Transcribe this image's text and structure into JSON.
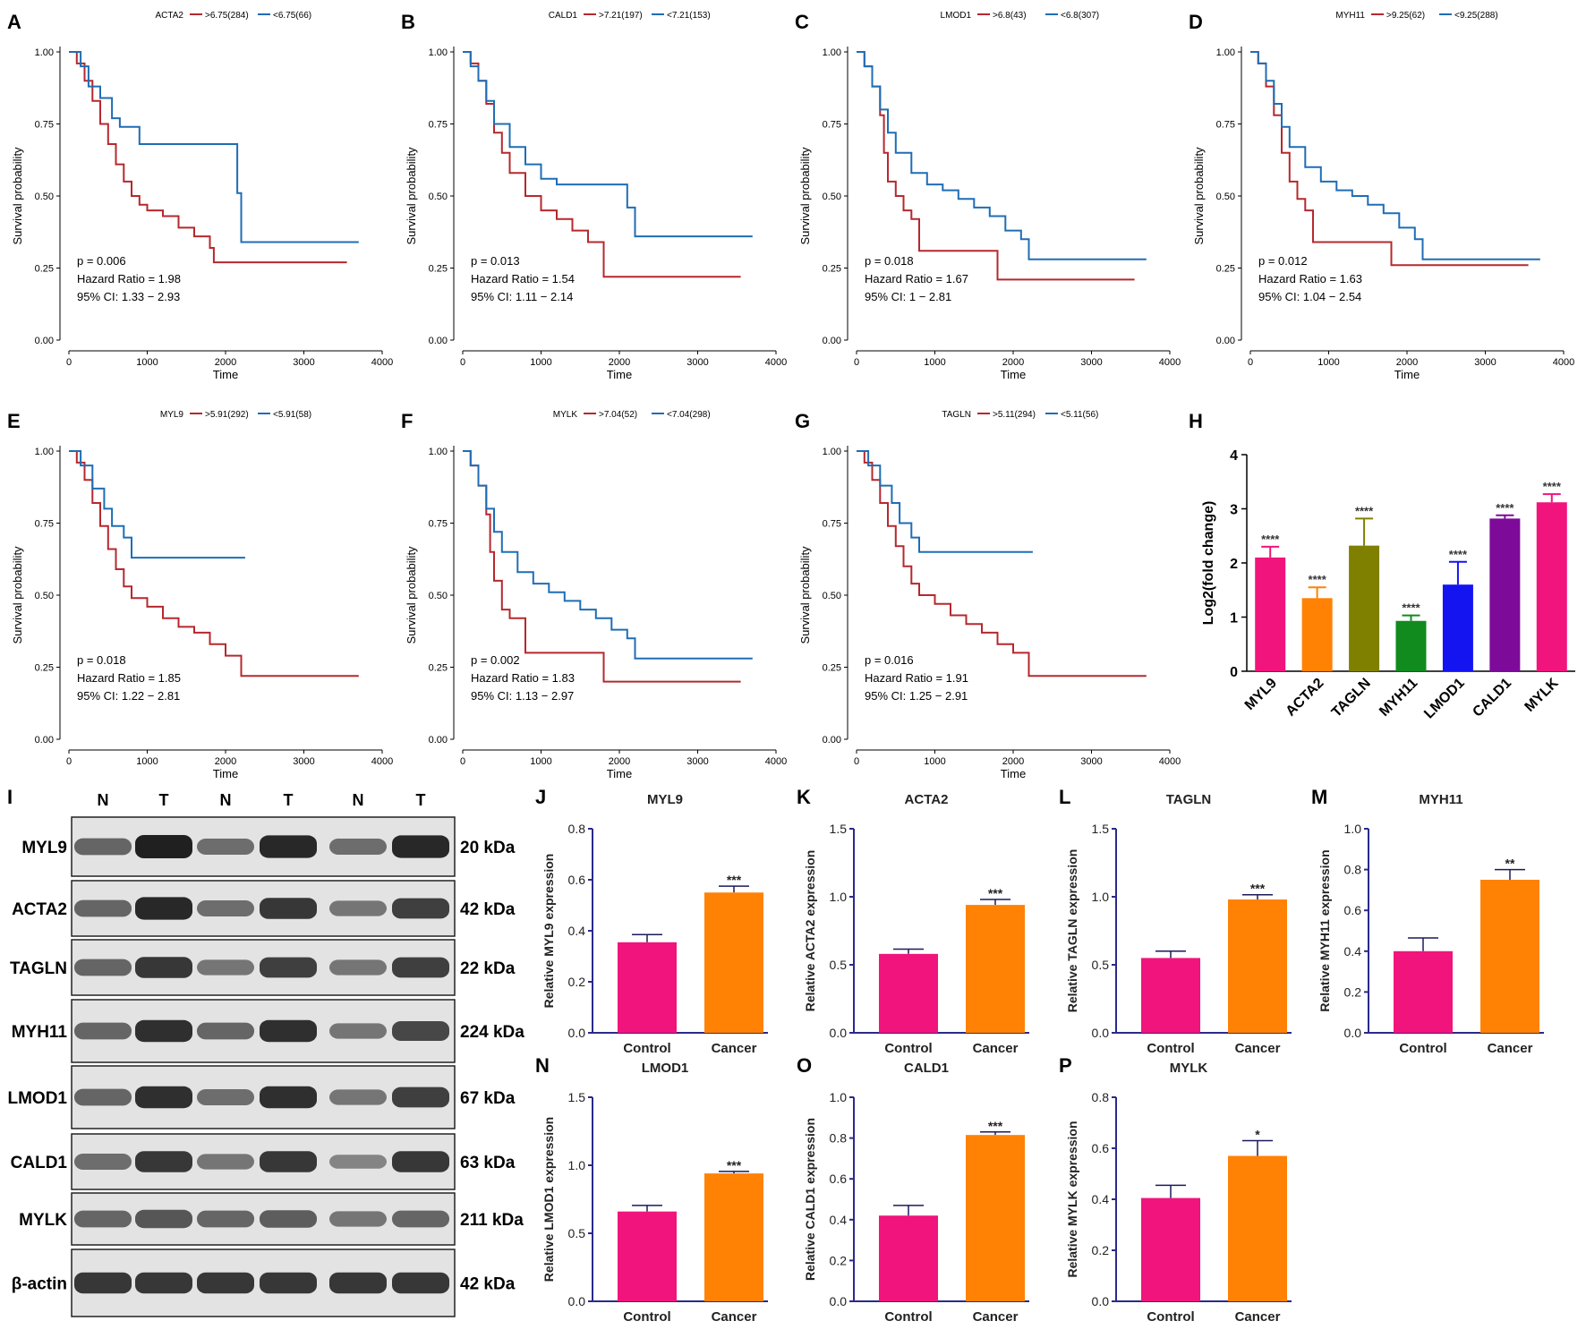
{
  "panel_letters": [
    "A",
    "B",
    "C",
    "D",
    "E",
    "F",
    "G",
    "H",
    "I",
    "J",
    "K",
    "L",
    "M",
    "N",
    "O",
    "P"
  ],
  "colors": {
    "high": "#b5282e",
    "low": "#1f6db5",
    "control": "#f0147c",
    "cancer": "#ff8205",
    "axis": "#2a2a8a"
  },
  "km_axis": {
    "ylabel": "Survival probability",
    "xlabel": "Time",
    "yticks": [
      "0.00",
      "0.25",
      "0.50",
      "0.75",
      "1.00"
    ],
    "xticks": [
      "0",
      "1000",
      "2000",
      "3000",
      "4000"
    ]
  },
  "chart_data": [
    {
      "panel": "A",
      "type": "line",
      "gene": "ACTA2",
      "legend": [
        ">6.75(284)",
        "<6.75(66)"
      ],
      "p": "p = 0.006",
      "hr": "Hazard Ratio = 1.98",
      "ci": "95% CI: 1.33 − 2.93",
      "xlim": [
        0,
        4000
      ],
      "ylim": [
        0,
        1
      ],
      "series": [
        {
          "name": ">6.75(284)",
          "x": [
            0,
            100,
            200,
            300,
            400,
            500,
            600,
            700,
            800,
            900,
            1000,
            1200,
            1400,
            1600,
            1800,
            1850,
            2200,
            3550
          ],
          "y": [
            1,
            0.96,
            0.9,
            0.83,
            0.75,
            0.68,
            0.61,
            0.55,
            0.5,
            0.47,
            0.45,
            0.43,
            0.39,
            0.36,
            0.32,
            0.27,
            0.27,
            0.27
          ]
        },
        {
          "name": "<6.75(66)",
          "x": [
            0,
            150,
            250,
            400,
            550,
            650,
            900,
            2100,
            2150,
            2200,
            3700
          ],
          "y": [
            1,
            0.95,
            0.88,
            0.84,
            0.77,
            0.74,
            0.68,
            0.68,
            0.51,
            0.34,
            0.34
          ]
        }
      ]
    },
    {
      "panel": "B",
      "type": "line",
      "gene": "CALD1",
      "legend": [
        ">7.21(197)",
        "<7.21(153)"
      ],
      "p": "p = 0.013",
      "hr": "Hazard Ratio = 1.54",
      "ci": "95% CI: 1.11 − 2.14",
      "xlim": [
        0,
        4000
      ],
      "ylim": [
        0,
        1
      ],
      "series": [
        {
          "name": ">7.21(197)",
          "x": [
            0,
            100,
            200,
            300,
            400,
            500,
            600,
            800,
            1000,
            1200,
            1400,
            1600,
            1800,
            1800,
            2200,
            3550
          ],
          "y": [
            1,
            0.96,
            0.9,
            0.82,
            0.72,
            0.65,
            0.58,
            0.5,
            0.45,
            0.42,
            0.38,
            0.34,
            0.3,
            0.22,
            0.22,
            0.22
          ]
        },
        {
          "name": "<7.21(153)",
          "x": [
            0,
            100,
            200,
            300,
            400,
            600,
            800,
            1000,
            1200,
            1600,
            2100,
            2100,
            2200,
            2200,
            3700
          ],
          "y": [
            1,
            0.95,
            0.9,
            0.83,
            0.75,
            0.67,
            0.61,
            0.56,
            0.54,
            0.54,
            0.54,
            0.46,
            0.46,
            0.36,
            0.36
          ]
        }
      ]
    },
    {
      "panel": "C",
      "type": "line",
      "gene": "LMOD1",
      "legend": [
        ">6.8(43)",
        "<6.8(307)"
      ],
      "p": "p = 0.018",
      "hr": "Hazard Ratio = 1.67",
      "ci": "95% CI: 1 − 2.81",
      "xlim": [
        0,
        4000
      ],
      "ylim": [
        0,
        1
      ],
      "series": [
        {
          "name": ">6.8(43)",
          "x": [
            0,
            100,
            200,
            300,
            350,
            400,
            500,
            600,
            700,
            800,
            800,
            1800,
            1800,
            3550
          ],
          "y": [
            1,
            0.95,
            0.88,
            0.78,
            0.65,
            0.55,
            0.5,
            0.45,
            0.42,
            0.42,
            0.31,
            0.31,
            0.21,
            0.21
          ]
        },
        {
          "name": "<6.8(307)",
          "x": [
            0,
            100,
            200,
            300,
            400,
            500,
            700,
            900,
            1100,
            1300,
            1500,
            1700,
            1900,
            2100,
            2200,
            2200,
            3700
          ],
          "y": [
            1,
            0.95,
            0.88,
            0.8,
            0.72,
            0.65,
            0.58,
            0.54,
            0.52,
            0.49,
            0.46,
            0.43,
            0.38,
            0.35,
            0.35,
            0.28,
            0.28
          ]
        }
      ]
    },
    {
      "panel": "D",
      "type": "line",
      "gene": "MYH11",
      "legend": [
        ">9.25(62)",
        "<9.25(288)"
      ],
      "p": "p = 0.012",
      "hr": "Hazard Ratio = 1.63",
      "ci": "95% CI: 1.04 − 2.54",
      "xlim": [
        0,
        4000
      ],
      "ylim": [
        0,
        1
      ],
      "series": [
        {
          "name": ">9.25(62)",
          "x": [
            0,
            100,
            200,
            300,
            400,
            500,
            600,
            700,
            800,
            800,
            1800,
            1800,
            3550
          ],
          "y": [
            1,
            0.96,
            0.88,
            0.78,
            0.65,
            0.55,
            0.49,
            0.45,
            0.42,
            0.34,
            0.34,
            0.26,
            0.26
          ]
        },
        {
          "name": "<9.25(288)",
          "x": [
            0,
            100,
            200,
            300,
            400,
            500,
            700,
            900,
            1100,
            1300,
            1500,
            1700,
            1900,
            2100,
            2200,
            2200,
            3700
          ],
          "y": [
            1,
            0.96,
            0.9,
            0.82,
            0.74,
            0.67,
            0.6,
            0.55,
            0.52,
            0.5,
            0.47,
            0.44,
            0.39,
            0.35,
            0.35,
            0.28,
            0.28
          ]
        }
      ]
    },
    {
      "panel": "E",
      "type": "line",
      "gene": "MYL9",
      "legend": [
        ">5.91(292)",
        "<5.91(58)"
      ],
      "p": "p = 0.018",
      "hr": "Hazard Ratio = 1.85",
      "ci": "95% CI: 1.22 − 2.81",
      "xlim": [
        0,
        4000
      ],
      "ylim": [
        0,
        1
      ],
      "series": [
        {
          "name": ">5.91(292)",
          "x": [
            0,
            100,
            200,
            300,
            400,
            500,
            600,
            700,
            800,
            1000,
            1200,
            1400,
            1600,
            1800,
            2000,
            2200,
            2200,
            3700
          ],
          "y": [
            1,
            0.96,
            0.9,
            0.82,
            0.74,
            0.66,
            0.59,
            0.53,
            0.49,
            0.46,
            0.42,
            0.39,
            0.37,
            0.33,
            0.29,
            0.28,
            0.22,
            0.22
          ]
        },
        {
          "name": "<5.91(58)",
          "x": [
            0,
            150,
            300,
            450,
            550,
            700,
            800,
            2250
          ],
          "y": [
            1,
            0.95,
            0.87,
            0.8,
            0.74,
            0.7,
            0.63,
            0.63
          ]
        }
      ]
    },
    {
      "panel": "F",
      "type": "line",
      "gene": "MYLK",
      "legend": [
        ">7.04(52)",
        "<7.04(298)"
      ],
      "p": "p = 0.002",
      "hr": "Hazard Ratio = 1.83",
      "ci": "95% CI: 1.13 − 2.97",
      "xlim": [
        0,
        4000
      ],
      "ylim": [
        0,
        1
      ],
      "series": [
        {
          "name": ">7.04(52)",
          "x": [
            0,
            100,
            200,
            300,
            350,
            400,
            500,
            600,
            800,
            800,
            1800,
            1800,
            3550
          ],
          "y": [
            1,
            0.95,
            0.88,
            0.78,
            0.65,
            0.55,
            0.45,
            0.42,
            0.42,
            0.3,
            0.3,
            0.2,
            0.2
          ]
        },
        {
          "name": "<7.04(298)",
          "x": [
            0,
            100,
            200,
            300,
            400,
            500,
            700,
            900,
            1100,
            1300,
            1500,
            1700,
            1900,
            2100,
            2200,
            2200,
            3700
          ],
          "y": [
            1,
            0.95,
            0.88,
            0.8,
            0.72,
            0.65,
            0.58,
            0.54,
            0.51,
            0.48,
            0.45,
            0.42,
            0.38,
            0.35,
            0.35,
            0.28,
            0.28
          ]
        }
      ]
    },
    {
      "panel": "G",
      "type": "line",
      "gene": "TAGLN",
      "legend": [
        ">5.11(294)",
        "<5.11(56)"
      ],
      "p": "p = 0.016",
      "hr": "Hazard Ratio = 1.91",
      "ci": "95% CI: 1.25 − 2.91",
      "xlim": [
        0,
        4000
      ],
      "ylim": [
        0,
        1
      ],
      "series": [
        {
          "name": ">5.11(294)",
          "x": [
            0,
            100,
            200,
            300,
            400,
            500,
            600,
            700,
            800,
            1000,
            1200,
            1400,
            1600,
            1800,
            2000,
            2200,
            2200,
            3700
          ],
          "y": [
            1,
            0.96,
            0.9,
            0.82,
            0.74,
            0.67,
            0.6,
            0.54,
            0.5,
            0.47,
            0.43,
            0.4,
            0.37,
            0.33,
            0.3,
            0.28,
            0.22,
            0.22
          ]
        },
        {
          "name": "<5.11(56)",
          "x": [
            0,
            150,
            300,
            450,
            550,
            700,
            800,
            2250
          ],
          "y": [
            1,
            0.95,
            0.88,
            0.82,
            0.75,
            0.7,
            0.65,
            0.65
          ]
        }
      ]
    },
    {
      "panel": "H",
      "type": "bar",
      "ylabel": "Log2(fold change)",
      "ylim": [
        0,
        4
      ],
      "yticks": [
        "0",
        "1",
        "2",
        "3",
        "4"
      ],
      "categories": [
        "MYL9",
        "ACTA2",
        "TAGLN",
        "MYH11",
        "LMOD1",
        "CALD1",
        "MYLK"
      ],
      "values": [
        2.1,
        1.35,
        2.32,
        0.93,
        1.6,
        2.82,
        3.12
      ],
      "errors": [
        0.2,
        0.2,
        0.5,
        0.1,
        0.42,
        0.06,
        0.15
      ],
      "bar_colors": [
        "#f0147c",
        "#ff8205",
        "#808000",
        "#118a1e",
        "#1414f0",
        "#7d0a99",
        "#f0147c"
      ],
      "annotations": [
        "****",
        "****",
        "****",
        "****",
        "****",
        "****",
        "****"
      ]
    },
    {
      "panel": "J",
      "type": "bar",
      "title": "MYL9",
      "ylabel": "Relative MYL9 expression",
      "categories": [
        "Control",
        "Cancer"
      ],
      "values": [
        0.355,
        0.55
      ],
      "errors": [
        0.03,
        0.025
      ],
      "ylim": [
        0,
        0.8
      ],
      "yticks": [
        "0.0",
        "0.2",
        "0.4",
        "0.6",
        "0.8"
      ],
      "sig": "***"
    },
    {
      "panel": "K",
      "type": "bar",
      "title": "ACTA2",
      "ylabel": "Relative ACTA2 expression",
      "categories": [
        "Control",
        "Cancer"
      ],
      "values": [
        0.58,
        0.94
      ],
      "errors": [
        0.035,
        0.04
      ],
      "ylim": [
        0,
        1.5
      ],
      "yticks": [
        "0.0",
        "0.5",
        "1.0",
        "1.5"
      ],
      "sig": "***"
    },
    {
      "panel": "L",
      "type": "bar",
      "title": "TAGLN",
      "ylabel": "Relative TAGLN expression",
      "categories": [
        "Control",
        "Cancer"
      ],
      "values": [
        0.55,
        0.98
      ],
      "errors": [
        0.05,
        0.035
      ],
      "ylim": [
        0,
        1.5
      ],
      "yticks": [
        "0.0",
        "0.5",
        "1.0",
        "1.5"
      ],
      "sig": "***"
    },
    {
      "panel": "M",
      "type": "bar",
      "title": "MYH11",
      "ylabel": "Relative MYH11 expression",
      "categories": [
        "Control",
        "Cancer"
      ],
      "values": [
        0.4,
        0.75
      ],
      "errors": [
        0.065,
        0.05
      ],
      "ylim": [
        0,
        1
      ],
      "yticks": [
        "0.0",
        "0.2",
        "0.4",
        "0.6",
        "0.8",
        "1.0"
      ],
      "sig": "**"
    },
    {
      "panel": "N",
      "type": "bar",
      "title": "LMOD1",
      "ylabel": "Relative LMOD1 expression",
      "categories": [
        "Control",
        "Cancer"
      ],
      "values": [
        0.66,
        0.94
      ],
      "errors": [
        0.045,
        0.015
      ],
      "ylim": [
        0,
        1.5
      ],
      "yticks": [
        "0.0",
        "0.5",
        "1.0",
        "1.5"
      ],
      "sig": "***"
    },
    {
      "panel": "O",
      "type": "bar",
      "title": "CALD1",
      "ylabel": "Relative CALD1 expression",
      "categories": [
        "Control",
        "Cancer"
      ],
      "values": [
        0.42,
        0.815
      ],
      "errors": [
        0.05,
        0.015
      ],
      "ylim": [
        0,
        1
      ],
      "yticks": [
        "0.0",
        "0.2",
        "0.4",
        "0.6",
        "0.8",
        "1.0"
      ],
      "sig": "***"
    },
    {
      "panel": "P",
      "type": "bar",
      "title": "MYLK",
      "ylabel": "Relative MYLK expression",
      "categories": [
        "Control",
        "Cancer"
      ],
      "values": [
        0.405,
        0.57
      ],
      "errors": [
        0.05,
        0.06
      ],
      "ylim": [
        0,
        0.8
      ],
      "yticks": [
        "0.0",
        "0.2",
        "0.4",
        "0.6",
        "0.8"
      ],
      "sig": "*"
    }
  ],
  "blot": {
    "lanes": [
      "N",
      "T",
      "N",
      "T",
      "N",
      "T"
    ],
    "rows": [
      {
        "name": "MYL9",
        "kda": "20 kDa",
        "intensity": [
          0.55,
          1.0,
          0.5,
          0.95,
          0.5,
          0.95
        ]
      },
      {
        "name": "ACTA2",
        "kda": "42 kDa",
        "intensity": [
          0.55,
          0.95,
          0.5,
          0.85,
          0.45,
          0.8
        ]
      },
      {
        "name": "TAGLN",
        "kda": "22 kDa",
        "intensity": [
          0.55,
          0.85,
          0.45,
          0.8,
          0.45,
          0.8
        ]
      },
      {
        "name": "MYH11",
        "kda": "224 kDa",
        "intensity": [
          0.55,
          0.9,
          0.55,
          0.9,
          0.45,
          0.75
        ]
      },
      {
        "name": "LMOD1",
        "kda": "67 kDa",
        "intensity": [
          0.55,
          0.9,
          0.5,
          0.9,
          0.45,
          0.8
        ]
      },
      {
        "name": "CALD1",
        "kda": "63 kDa",
        "intensity": [
          0.5,
          0.85,
          0.45,
          0.85,
          0.35,
          0.85
        ]
      },
      {
        "name": "MYLK",
        "kda": "211 kDa",
        "intensity": [
          0.55,
          0.65,
          0.55,
          0.6,
          0.45,
          0.55
        ]
      },
      {
        "name": "β-actin",
        "kda": "42 kDa",
        "intensity": [
          0.85,
          0.85,
          0.85,
          0.85,
          0.85,
          0.85
        ]
      }
    ]
  }
}
